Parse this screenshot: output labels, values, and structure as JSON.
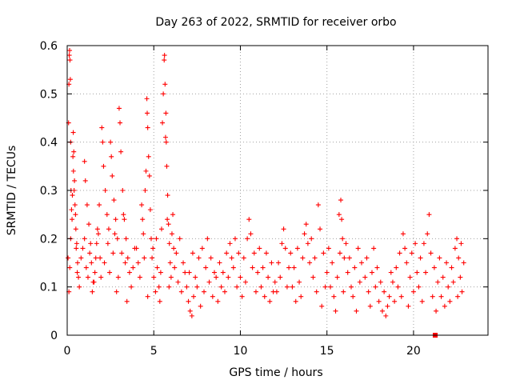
{
  "chart_data": {
    "type": "scatter",
    "title": "Day 263 of 2022, SRMTID for receiver orbo",
    "xlabel": "GPS time / hours",
    "ylabel": "SRMTID / TECUs",
    "xlim": [
      0,
      24.3
    ],
    "ylim": [
      0,
      0.6
    ],
    "xticks": [
      0,
      5,
      10,
      15,
      20
    ],
    "xtick_labels": [
      "0",
      "5",
      "10",
      "15",
      "20"
    ],
    "yticks": [
      0,
      0.1,
      0.2,
      0.3,
      0.4,
      0.5,
      0.6
    ],
    "ytick_labels": [
      "0",
      "0.1",
      "0.2",
      "0.3",
      "0.4",
      "0.5",
      "0.6"
    ],
    "grid": true,
    "marker": "plus",
    "color": "#ff0000",
    "series": [
      {
        "name": "SRMTID",
        "points": [
          [
            0.05,
            0.16
          ],
          [
            0.08,
            0.44
          ],
          [
            0.1,
            0.52
          ],
          [
            0.12,
            0.58
          ],
          [
            0.14,
            0.59
          ],
          [
            0.16,
            0.57
          ],
          [
            0.18,
            0.53
          ],
          [
            0.2,
            0.4
          ],
          [
            0.22,
            0.3
          ],
          [
            0.25,
            0.26
          ],
          [
            0.28,
            0.24
          ],
          [
            0.3,
            0.29
          ],
          [
            0.33,
            0.37
          ],
          [
            0.36,
            0.34
          ],
          [
            0.4,
            0.3
          ],
          [
            0.45,
            0.27
          ],
          [
            0.5,
            0.22
          ],
          [
            0.55,
            0.19
          ],
          [
            0.6,
            0.15
          ],
          [
            0.65,
            0.12
          ],
          [
            0.7,
            0.1
          ],
          [
            0.1,
            0.09
          ],
          [
            0.15,
            0.14
          ],
          [
            0.2,
            0.2
          ],
          [
            0.35,
            0.42
          ],
          [
            0.38,
            0.38
          ],
          [
            0.42,
            0.32
          ],
          [
            0.48,
            0.25
          ],
          [
            0.52,
            0.18
          ],
          [
            0.58,
            0.13
          ],
          [
            0.8,
            0.16
          ],
          [
            0.9,
            0.18
          ],
          [
            1.0,
            0.2
          ],
          [
            1.1,
            0.14
          ],
          [
            1.2,
            0.12
          ],
          [
            1.3,
            0.17
          ],
          [
            1.4,
            0.15
          ],
          [
            1.5,
            0.11
          ],
          [
            1.6,
            0.13
          ],
          [
            1.7,
            0.19
          ],
          [
            1.8,
            0.21
          ],
          [
            1.9,
            0.16
          ],
          [
            2.0,
            0.43
          ],
          [
            2.05,
            0.4
          ],
          [
            2.1,
            0.35
          ],
          [
            2.2,
            0.3
          ],
          [
            2.3,
            0.25
          ],
          [
            2.4,
            0.22
          ],
          [
            2.5,
            0.4
          ],
          [
            2.55,
            0.37
          ],
          [
            2.6,
            0.33
          ],
          [
            2.7,
            0.28
          ],
          [
            2.8,
            0.24
          ],
          [
            2.9,
            0.2
          ],
          [
            3.0,
            0.47
          ],
          [
            3.05,
            0.44
          ],
          [
            3.1,
            0.38
          ],
          [
            3.2,
            0.3
          ],
          [
            3.3,
            0.24
          ],
          [
            3.4,
            0.2
          ],
          [
            3.5,
            0.16
          ],
          [
            3.6,
            0.13
          ],
          [
            3.7,
            0.1
          ],
          [
            3.8,
            0.14
          ],
          [
            3.9,
            0.18
          ],
          [
            1.0,
            0.36
          ],
          [
            1.05,
            0.32
          ],
          [
            1.15,
            0.27
          ],
          [
            1.25,
            0.23
          ],
          [
            1.35,
            0.19
          ],
          [
            1.45,
            0.09
          ],
          [
            1.55,
            0.11
          ],
          [
            1.65,
            0.16
          ],
          [
            1.75,
            0.22
          ],
          [
            1.85,
            0.27
          ],
          [
            1.95,
            0.12
          ],
          [
            2.15,
            0.15
          ],
          [
            2.35,
            0.19
          ],
          [
            2.45,
            0.13
          ],
          [
            2.65,
            0.17
          ],
          [
            2.75,
            0.21
          ],
          [
            2.85,
            0.09
          ],
          [
            2.95,
            0.12
          ],
          [
            3.15,
            0.17
          ],
          [
            3.25,
            0.25
          ],
          [
            3.35,
            0.15
          ],
          [
            3.45,
            0.07
          ],
          [
            4.0,
            0.18
          ],
          [
            4.1,
            0.15
          ],
          [
            4.2,
            0.12
          ],
          [
            4.3,
            0.27
          ],
          [
            4.35,
            0.24
          ],
          [
            4.4,
            0.21
          ],
          [
            4.5,
            0.3
          ],
          [
            4.55,
            0.34
          ],
          [
            4.6,
            0.49
          ],
          [
            4.62,
            0.46
          ],
          [
            4.65,
            0.43
          ],
          [
            4.7,
            0.37
          ],
          [
            4.75,
            0.33
          ],
          [
            4.8,
            0.26
          ],
          [
            4.85,
            0.2
          ],
          [
            4.9,
            0.16
          ],
          [
            5.0,
            0.12
          ],
          [
            5.1,
            0.09
          ],
          [
            5.2,
            0.14
          ],
          [
            5.3,
            0.1
          ],
          [
            5.4,
            0.13
          ],
          [
            5.5,
            0.44
          ],
          [
            5.55,
            0.5
          ],
          [
            5.6,
            0.57
          ],
          [
            5.62,
            0.58
          ],
          [
            5.65,
            0.52
          ],
          [
            5.7,
            0.46
          ],
          [
            5.72,
            0.4
          ],
          [
            5.75,
            0.35
          ],
          [
            5.8,
            0.29
          ],
          [
            5.85,
            0.23
          ],
          [
            5.9,
            0.19
          ],
          [
            5.95,
            0.15
          ],
          [
            6.0,
            0.12
          ],
          [
            4.45,
            0.16
          ],
          [
            4.65,
            0.08
          ],
          [
            4.95,
            0.18
          ],
          [
            5.15,
            0.2
          ],
          [
            5.35,
            0.07
          ],
          [
            5.45,
            0.22
          ],
          [
            5.68,
            0.41
          ],
          [
            5.78,
            0.24
          ],
          [
            5.88,
            0.1
          ],
          [
            6.05,
            0.21
          ],
          [
            6.1,
            0.25
          ],
          [
            6.15,
            0.18
          ],
          [
            6.2,
            0.14
          ],
          [
            6.4,
            0.11
          ],
          [
            6.6,
            0.09
          ],
          [
            6.8,
            0.13
          ],
          [
            7.0,
            0.07
          ],
          [
            7.1,
            0.05
          ],
          [
            7.2,
            0.04
          ],
          [
            7.3,
            0.08
          ],
          [
            7.4,
            0.12
          ],
          [
            7.6,
            0.16
          ],
          [
            7.8,
            0.18
          ],
          [
            8.0,
            0.14
          ],
          [
            8.2,
            0.11
          ],
          [
            8.4,
            0.08
          ],
          [
            8.6,
            0.12
          ],
          [
            8.8,
            0.15
          ],
          [
            9.0,
            0.13
          ],
          [
            9.2,
            0.17
          ],
          [
            9.4,
            0.19
          ],
          [
            9.6,
            0.14
          ],
          [
            9.8,
            0.1
          ],
          [
            10.0,
            0.12
          ],
          [
            10.2,
            0.16
          ],
          [
            10.4,
            0.2
          ],
          [
            10.5,
            0.24
          ],
          [
            10.6,
            0.21
          ],
          [
            10.8,
            0.17
          ],
          [
            11.0,
            0.13
          ],
          [
            11.2,
            0.1
          ],
          [
            11.4,
            0.08
          ],
          [
            11.6,
            0.12
          ],
          [
            11.8,
            0.15
          ],
          [
            12.0,
            0.11
          ],
          [
            6.3,
            0.17
          ],
          [
            6.5,
            0.2
          ],
          [
            6.7,
            0.15
          ],
          [
            6.9,
            0.1
          ],
          [
            7.05,
            0.13
          ],
          [
            7.25,
            0.17
          ],
          [
            7.5,
            0.1
          ],
          [
            7.7,
            0.06
          ],
          [
            7.9,
            0.09
          ],
          [
            8.1,
            0.2
          ],
          [
            8.3,
            0.16
          ],
          [
            8.5,
            0.13
          ],
          [
            8.7,
            0.07
          ],
          [
            8.9,
            0.1
          ],
          [
            9.1,
            0.09
          ],
          [
            9.3,
            0.12
          ],
          [
            9.5,
            0.16
          ],
          [
            9.7,
            0.2
          ],
          [
            9.9,
            0.17
          ],
          [
            10.1,
            0.08
          ],
          [
            10.3,
            0.11
          ],
          [
            10.7,
            0.14
          ],
          [
            10.9,
            0.09
          ],
          [
            11.1,
            0.18
          ],
          [
            11.3,
            0.14
          ],
          [
            11.5,
            0.17
          ],
          [
            11.7,
            0.07
          ],
          [
            11.9,
            0.09
          ],
          [
            12.2,
            0.15
          ],
          [
            12.4,
            0.19
          ],
          [
            12.5,
            0.22
          ],
          [
            12.6,
            0.18
          ],
          [
            12.8,
            0.14
          ],
          [
            13.0,
            0.1
          ],
          [
            13.2,
            0.07
          ],
          [
            13.4,
            0.11
          ],
          [
            13.6,
            0.16
          ],
          [
            13.7,
            0.21
          ],
          [
            13.8,
            0.23
          ],
          [
            13.9,
            0.19
          ],
          [
            14.0,
            0.15
          ],
          [
            14.2,
            0.12
          ],
          [
            14.4,
            0.09
          ],
          [
            14.5,
            0.27
          ],
          [
            14.6,
            0.22
          ],
          [
            14.8,
            0.17
          ],
          [
            15.0,
            0.13
          ],
          [
            15.2,
            0.1
          ],
          [
            15.4,
            0.08
          ],
          [
            15.6,
            0.12
          ],
          [
            15.7,
            0.25
          ],
          [
            15.8,
            0.28
          ],
          [
            15.85,
            0.24
          ],
          [
            15.9,
            0.2
          ],
          [
            16.0,
            0.16
          ],
          [
            16.2,
            0.13
          ],
          [
            16.4,
            0.1
          ],
          [
            16.6,
            0.14
          ],
          [
            16.8,
            0.18
          ],
          [
            17.0,
            0.15
          ],
          [
            12.1,
            0.09
          ],
          [
            12.3,
            0.12
          ],
          [
            12.7,
            0.1
          ],
          [
            12.9,
            0.17
          ],
          [
            13.1,
            0.14
          ],
          [
            13.3,
            0.18
          ],
          [
            13.5,
            0.08
          ],
          [
            14.1,
            0.2
          ],
          [
            14.3,
            0.16
          ],
          [
            14.7,
            0.06
          ],
          [
            14.9,
            0.1
          ],
          [
            15.1,
            0.18
          ],
          [
            15.3,
            0.15
          ],
          [
            15.5,
            0.05
          ],
          [
            15.75,
            0.17
          ],
          [
            15.95,
            0.09
          ],
          [
            16.1,
            0.19
          ],
          [
            16.3,
            0.16
          ],
          [
            16.5,
            0.08
          ],
          [
            16.7,
            0.05
          ],
          [
            16.9,
            0.11
          ],
          [
            17.2,
            0.12
          ],
          [
            17.4,
            0.09
          ],
          [
            17.6,
            0.13
          ],
          [
            17.8,
            0.1
          ],
          [
            18.0,
            0.07
          ],
          [
            18.2,
            0.05
          ],
          [
            18.4,
            0.04
          ],
          [
            18.6,
            0.08
          ],
          [
            18.8,
            0.11
          ],
          [
            19.0,
            0.14
          ],
          [
            19.2,
            0.17
          ],
          [
            19.4,
            0.21
          ],
          [
            19.5,
            0.18
          ],
          [
            19.6,
            0.15
          ],
          [
            19.8,
            0.12
          ],
          [
            20.0,
            0.09
          ],
          [
            20.2,
            0.13
          ],
          [
            20.4,
            0.16
          ],
          [
            20.6,
            0.19
          ],
          [
            20.8,
            0.21
          ],
          [
            20.9,
            0.25
          ],
          [
            21.0,
            0.17
          ],
          [
            21.2,
            0.14
          ],
          [
            21.4,
            0.11
          ],
          [
            21.6,
            0.08
          ],
          [
            21.8,
            0.06
          ],
          [
            22.0,
            0.1
          ],
          [
            22.2,
            0.14
          ],
          [
            22.4,
            0.18
          ],
          [
            22.5,
            0.2
          ],
          [
            22.6,
            0.16
          ],
          [
            22.7,
            0.12
          ],
          [
            22.8,
            0.09
          ],
          [
            22.9,
            0.15
          ],
          [
            17.3,
            0.16
          ],
          [
            17.5,
            0.06
          ],
          [
            17.7,
            0.18
          ],
          [
            17.9,
            0.14
          ],
          [
            18.1,
            0.11
          ],
          [
            18.3,
            0.09
          ],
          [
            18.5,
            0.06
          ],
          [
            18.7,
            0.13
          ],
          [
            18.9,
            0.07
          ],
          [
            19.1,
            0.1
          ],
          [
            19.3,
            0.08
          ],
          [
            19.7,
            0.06
          ],
          [
            19.9,
            0.17
          ],
          [
            20.1,
            0.19
          ],
          [
            20.3,
            0.1
          ],
          [
            20.5,
            0.07
          ],
          [
            20.7,
            0.13
          ],
          [
            21.1,
            0.08
          ],
          [
            21.3,
            0.05
          ],
          [
            21.5,
            0.16
          ],
          [
            21.7,
            0.12
          ],
          [
            21.9,
            0.15
          ],
          [
            22.1,
            0.07
          ],
          [
            22.3,
            0.11
          ],
          [
            22.55,
            0.08
          ],
          [
            22.75,
            0.19
          ]
        ]
      }
    ],
    "extra_marks": [
      {
        "x": 21.25,
        "y": 0.0,
        "marker": "square"
      }
    ]
  }
}
